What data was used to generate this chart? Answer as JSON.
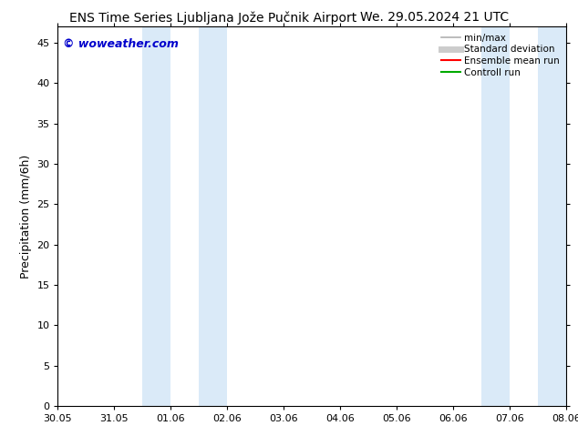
{
  "title_left": "ENS Time Series Ljubljana Jože Pučnik Airport",
  "title_right": "We. 29.05.2024 21 UTC",
  "ylabel": "Precipitation (mm/6h)",
  "watermark": "© woweather.com",
  "x_tick_labels": [
    "30.05",
    "31.05",
    "01.06",
    "02.06",
    "03.06",
    "04.06",
    "05.06",
    "06.06",
    "07.06",
    "08.06"
  ],
  "ylim": [
    0,
    47
  ],
  "yticks": [
    0,
    5,
    10,
    15,
    20,
    25,
    30,
    35,
    40,
    45
  ],
  "xlim": [
    0,
    9
  ],
  "background_color": "#ffffff",
  "shaded_regions": [
    {
      "x_start": 1.5,
      "x_end": 2.0,
      "color": "#daeaf8"
    },
    {
      "x_start": 2.5,
      "x_end": 3.0,
      "color": "#daeaf8"
    },
    {
      "x_start": 7.5,
      "x_end": 8.0,
      "color": "#daeaf8"
    },
    {
      "x_start": 8.5,
      "x_end": 9.0,
      "color": "#daeaf8"
    }
  ],
  "legend_entries": [
    {
      "label": "min/max",
      "color": "#b0b0b0",
      "lw": 1.2,
      "style": "solid"
    },
    {
      "label": "Standard deviation",
      "color": "#cccccc",
      "lw": 5,
      "style": "solid"
    },
    {
      "label": "Ensemble mean run",
      "color": "#ff0000",
      "lw": 1.5,
      "style": "solid"
    },
    {
      "label": "Controll run",
      "color": "#00aa00",
      "lw": 1.5,
      "style": "solid"
    }
  ],
  "watermark_color": "#0000cc",
  "title_fontsize": 10,
  "ylabel_fontsize": 9,
  "tick_fontsize": 8,
  "legend_fontsize": 7.5,
  "watermark_fontsize": 9
}
